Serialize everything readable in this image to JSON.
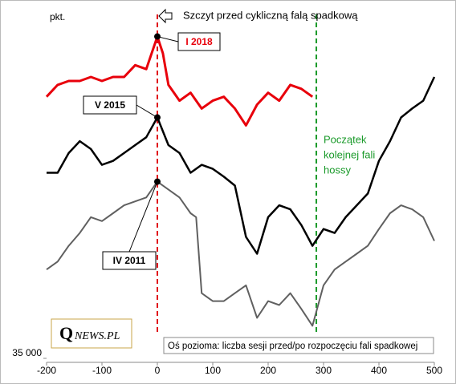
{
  "chart_data": {
    "type": "line",
    "y_label": "pkt.",
    "xlim": [
      -200,
      500
    ],
    "xticks": [
      -200,
      -100,
      0,
      100,
      200,
      300,
      400,
      500
    ],
    "ylim": [
      35000,
      70000
    ],
    "yticks": [
      {
        "value": 35000,
        "label": "35 000"
      }
    ],
    "x_axis_note": "Oś pozioma: liczba sesji przed/po rozpoczęciu fali spadkowej",
    "peak_note": "Szczyt przed cykliczną falą spadkową",
    "start_note": [
      "Początek",
      "kolejnej fali",
      "hossy"
    ],
    "logo": {
      "initial": "Q",
      "rest": "NEWS.PL"
    },
    "vlines": [
      {
        "x": 0,
        "color": "#e0121b"
      },
      {
        "x": 287,
        "color": "#1a9a2a"
      }
    ],
    "series": [
      {
        "name": "I 2018",
        "color": "#e8000b",
        "x": [
          -200,
          -180,
          -160,
          -140,
          -120,
          -100,
          -80,
          -60,
          -40,
          -20,
          0,
          10,
          20,
          40,
          60,
          80,
          100,
          120,
          140,
          160,
          180,
          200,
          220,
          240,
          260,
          280
        ],
        "values": [
          61500,
          62700,
          63100,
          63100,
          63500,
          63100,
          63500,
          63500,
          64700,
          64300,
          67600,
          65900,
          62700,
          61100,
          61900,
          60300,
          61100,
          61500,
          60300,
          58600,
          60700,
          61900,
          61100,
          62700,
          62300,
          61500
        ]
      },
      {
        "name": "V 2015",
        "color": "#000000",
        "x": [
          -200,
          -180,
          -160,
          -140,
          -120,
          -100,
          -80,
          -60,
          -40,
          -20,
          0,
          20,
          40,
          60,
          80,
          100,
          120,
          140,
          160,
          180,
          200,
          220,
          240,
          260,
          280,
          300,
          320,
          340,
          360,
          380,
          400,
          420,
          440,
          460,
          480,
          500
        ],
        "values": [
          53800,
          53800,
          55800,
          57000,
          56200,
          54600,
          55000,
          55800,
          56600,
          57400,
          59400,
          56600,
          55800,
          53800,
          54600,
          54200,
          53400,
          52500,
          47300,
          45600,
          49300,
          50500,
          50100,
          48500,
          46400,
          48100,
          47700,
          49300,
          50500,
          51700,
          55000,
          57000,
          59400,
          60300,
          61100,
          63500
        ]
      },
      {
        "name": "IV 2011",
        "color": "#606060",
        "x": [
          -200,
          -180,
          -160,
          -140,
          -120,
          -100,
          -80,
          -60,
          -40,
          -20,
          0,
          20,
          40,
          60,
          70,
          80,
          100,
          120,
          140,
          160,
          180,
          200,
          220,
          240,
          260,
          280,
          300,
          320,
          340,
          360,
          380,
          400,
          420,
          440,
          460,
          480,
          500
        ],
        "values": [
          44000,
          44800,
          46400,
          47700,
          49300,
          48900,
          49700,
          50500,
          50900,
          51300,
          52900,
          52100,
          51300,
          49700,
          49300,
          41600,
          40800,
          40800,
          41600,
          42400,
          39100,
          40800,
          40400,
          41600,
          40000,
          38300,
          42400,
          44000,
          44800,
          45600,
          46400,
          48100,
          49700,
          50500,
          50100,
          49300,
          46900
        ]
      }
    ]
  }
}
